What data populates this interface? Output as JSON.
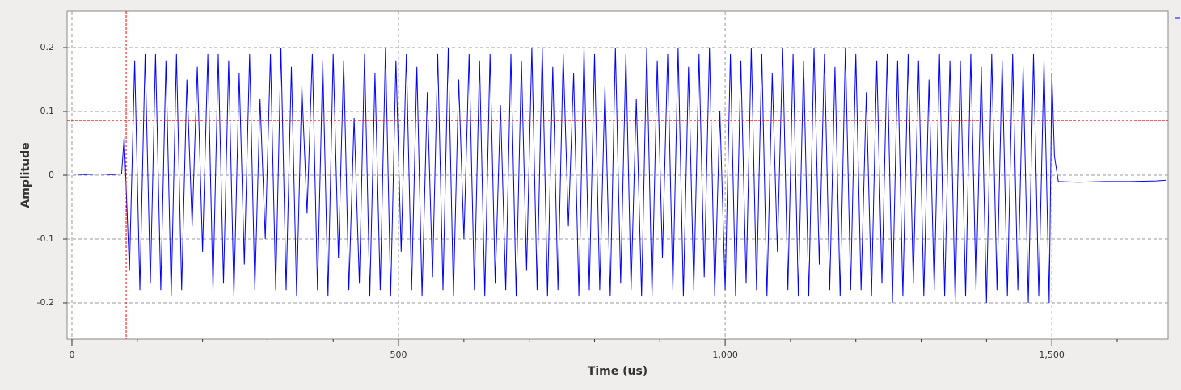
{
  "chart_data": {
    "type": "line",
    "xlabel": "Time (us)",
    "ylabel": "Amplitude",
    "xlim": [
      -7.4,
      1678
    ],
    "ylim": [
      -0.257,
      0.257
    ],
    "xticks": [
      0,
      500,
      {
        "value": 1000,
        "label": "1,000"
      },
      {
        "value": 1500,
        "label": "1,500"
      }
    ],
    "x_minor_ticks": [
      100,
      200,
      300,
      400,
      600,
      700,
      800,
      900,
      1100,
      1200,
      1300,
      1400,
      1600
    ],
    "yticks": [
      -0.2,
      -0.1,
      0,
      0.1,
      0.2
    ],
    "grid": true,
    "x_marker": 83,
    "y_marker": 0.086,
    "marker_color": "#ff0000",
    "series": [
      {
        "color": "#0000ff",
        "x": [
          0,
          20,
          40,
          60,
          76,
          80,
          88,
          96,
          104,
          112,
          120,
          128,
          136,
          144,
          152,
          160,
          168,
          176,
          184,
          192,
          200,
          208,
          216,
          224,
          232,
          240,
          248,
          256,
          264,
          272,
          280,
          288,
          296,
          304,
          312,
          320,
          328,
          336,
          344,
          352,
          360,
          368,
          376,
          384,
          392,
          400,
          408,
          416,
          424,
          432,
          440,
          448,
          456,
          464,
          472,
          480,
          488,
          496,
          504,
          512,
          520,
          528,
          536,
          544,
          552,
          560,
          568,
          576,
          584,
          592,
          600,
          608,
          616,
          624,
          632,
          640,
          648,
          656,
          664,
          672,
          680,
          688,
          696,
          704,
          712,
          720,
          728,
          736,
          744,
          752,
          760,
          768,
          776,
          784,
          792,
          800,
          808,
          816,
          824,
          832,
          840,
          848,
          856,
          864,
          872,
          880,
          888,
          896,
          904,
          912,
          920,
          928,
          936,
          944,
          952,
          960,
          968,
          976,
          984,
          992,
          1000,
          1008,
          1016,
          1024,
          1032,
          1040,
          1048,
          1056,
          1064,
          1072,
          1080,
          1088,
          1096,
          1104,
          1112,
          1120,
          1128,
          1136,
          1144,
          1152,
          1160,
          1168,
          1176,
          1184,
          1192,
          1200,
          1208,
          1216,
          1224,
          1232,
          1240,
          1248,
          1256,
          1264,
          1272,
          1280,
          1288,
          1296,
          1304,
          1312,
          1320,
          1328,
          1336,
          1344,
          1352,
          1360,
          1368,
          1376,
          1384,
          1392,
          1400,
          1408,
          1416,
          1424,
          1432,
          1440,
          1448,
          1456,
          1464,
          1472,
          1480,
          1488,
          1496,
          1500,
          1504,
          1510,
          1540,
          1580,
          1620,
          1660,
          1675
        ],
        "values": [
          0.002,
          0.001,
          0.002,
          0.001,
          0.002,
          0.06,
          -0.15,
          0.18,
          -0.18,
          0.19,
          -0.17,
          0.19,
          -0.18,
          0.18,
          -0.19,
          0.19,
          -0.18,
          0.15,
          -0.08,
          0.17,
          -0.12,
          0.19,
          -0.18,
          0.19,
          -0.17,
          0.18,
          -0.19,
          0.16,
          -0.14,
          0.19,
          -0.18,
          0.12,
          -0.1,
          0.19,
          -0.18,
          0.2,
          -0.18,
          0.17,
          -0.19,
          0.14,
          -0.06,
          0.19,
          -0.18,
          0.18,
          -0.19,
          0.19,
          -0.13,
          0.18,
          -0.18,
          0.09,
          -0.17,
          0.19,
          -0.19,
          0.16,
          -0.18,
          0.2,
          -0.19,
          0.18,
          -0.12,
          0.19,
          -0.18,
          0.17,
          -0.19,
          0.13,
          -0.16,
          0.19,
          -0.18,
          0.2,
          -0.19,
          0.15,
          -0.1,
          0.19,
          -0.18,
          0.18,
          -0.19,
          0.19,
          -0.17,
          0.11,
          -0.18,
          0.19,
          -0.19,
          0.18,
          -0.15,
          0.2,
          -0.18,
          0.2,
          -0.19,
          0.17,
          -0.18,
          0.19,
          -0.08,
          0.16,
          -0.19,
          0.2,
          -0.18,
          0.19,
          -0.18,
          0.14,
          -0.19,
          0.2,
          -0.17,
          0.19,
          -0.18,
          0.12,
          -0.19,
          0.2,
          -0.19,
          0.18,
          -0.13,
          0.19,
          -0.18,
          0.2,
          -0.19,
          0.17,
          -0.18,
          0.19,
          -0.16,
          0.2,
          -0.19,
          0.1,
          -0.18,
          0.19,
          -0.19,
          0.18,
          -0.17,
          0.2,
          -0.18,
          0.19,
          -0.19,
          0.16,
          -0.12,
          0.2,
          -0.18,
          0.19,
          -0.19,
          0.18,
          -0.19,
          0.2,
          -0.14,
          0.19,
          -0.18,
          0.17,
          -0.19,
          0.2,
          -0.18,
          0.19,
          -0.18,
          0.13,
          -0.19,
          0.18,
          -0.17,
          0.19,
          -0.2,
          0.18,
          -0.19,
          0.19,
          -0.17,
          0.18,
          -0.19,
          0.15,
          -0.18,
          0.19,
          -0.19,
          0.18,
          -0.2,
          0.18,
          -0.19,
          0.19,
          -0.18,
          0.17,
          -0.2,
          0.19,
          -0.18,
          0.18,
          -0.19,
          0.19,
          -0.18,
          0.17,
          -0.2,
          0.19,
          -0.19,
          0.18,
          -0.2,
          0.16,
          0.03,
          -0.01,
          -0.011,
          -0.01,
          -0.01,
          -0.009,
          -0.008
        ]
      }
    ]
  }
}
